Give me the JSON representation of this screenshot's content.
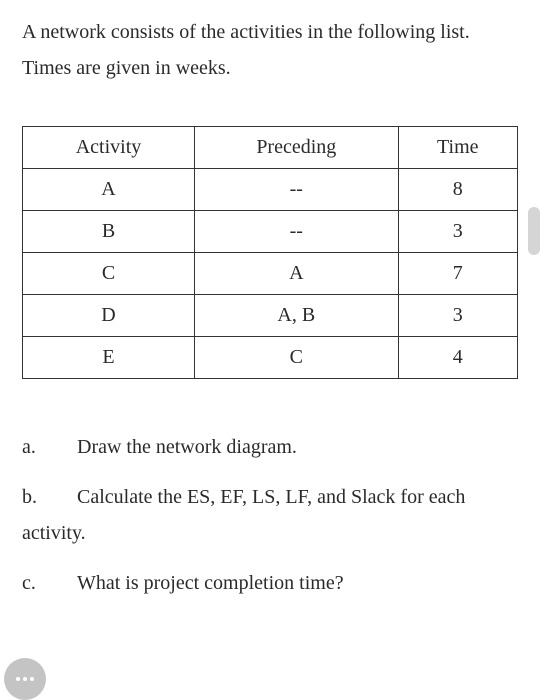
{
  "intro": "A network consists of the activities in the following list. Times are given in weeks.",
  "table": {
    "headers": [
      "Activity",
      "Preceding",
      "Time"
    ],
    "rows": [
      [
        "A",
        "--",
        "8"
      ],
      [
        "B",
        "--",
        "3"
      ],
      [
        "C",
        "A",
        "7"
      ],
      [
        "D",
        "A, B",
        "3"
      ],
      [
        "E",
        "C",
        "4"
      ]
    ]
  },
  "questions": [
    {
      "letter": "a.",
      "text": "Draw the network diagram."
    },
    {
      "letter": "b.",
      "text": "Calculate the ES, EF, LS, LF, and Slack for each activity."
    },
    {
      "letter": "c.",
      "text": "What is project completion time?"
    }
  ]
}
